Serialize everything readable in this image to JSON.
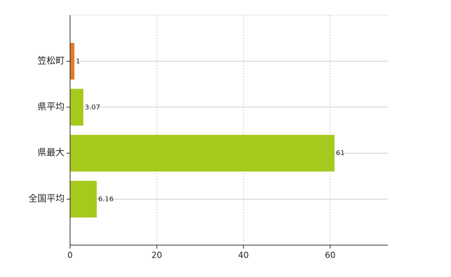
{
  "chart_data": {
    "type": "bar",
    "orientation": "horizontal",
    "categories": [
      "笠松町",
      "県平均",
      "県最大",
      "全国平均"
    ],
    "values": [
      1,
      3.07,
      61,
      6.16
    ],
    "colors": [
      "#e07b28",
      "#a6c91e",
      "#a6c91e",
      "#a6c91e"
    ],
    "xlim": [
      0,
      73.3
    ],
    "xticks": [
      0,
      20,
      40,
      60
    ],
    "grid": true,
    "data_labels": true
  }
}
